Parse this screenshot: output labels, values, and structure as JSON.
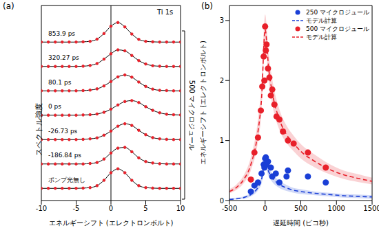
{
  "chart_data": [
    {
      "label": "(a)",
      "type": "line",
      "x_label": "エネルギーシフト (エレクトロンボルト)",
      "y_label": "スペクトル強度",
      "xlim": [
        -10,
        10
      ],
      "xticks": [
        -10,
        -5,
        0,
        5,
        10
      ],
      "ylim": [
        0,
        8
      ],
      "tick_labels": "x",
      "marker": "circle",
      "reference_lines": [
        0
      ],
      "annotations": [
        "Ti 1s",
        "500 マイクロジュール"
      ],
      "x": [
        -10,
        -9,
        -8,
        -7,
        -6,
        -5,
        -4,
        -3,
        -2,
        -1,
        0,
        1,
        2,
        3,
        4,
        5,
        6,
        7,
        8,
        9,
        10
      ],
      "series": [
        {
          "name": "853.9 ps",
          "color": "#e8202a",
          "values": [
            6.5,
            6.5,
            6.5,
            6.5,
            6.5,
            6.5,
            6.51,
            6.53,
            6.62,
            6.85,
            7.15,
            7.3,
            7.12,
            6.83,
            6.61,
            6.53,
            6.51,
            6.5,
            6.5,
            6.5,
            6.5
          ]
        },
        {
          "name": "320.27 ps",
          "color": "#e8202a",
          "values": [
            5.5,
            5.5,
            5.5,
            5.5,
            5.5,
            5.5,
            5.51,
            5.54,
            5.62,
            5.8,
            6.02,
            6.18,
            6.14,
            5.95,
            5.74,
            5.6,
            5.53,
            5.51,
            5.5,
            5.5,
            5.5
          ]
        },
        {
          "name": "80.1 ps",
          "color": "#e8202a",
          "values": [
            4.5,
            4.5,
            4.5,
            4.5,
            4.5,
            4.5,
            4.51,
            4.53,
            4.58,
            4.7,
            4.88,
            5.07,
            5.15,
            5.06,
            4.86,
            4.68,
            4.57,
            4.52,
            4.51,
            4.5,
            4.5
          ]
        },
        {
          "name": "0 ps",
          "color": "#e8202a",
          "values": [
            3.5,
            3.5,
            3.5,
            3.5,
            3.5,
            3.5,
            3.51,
            3.52,
            3.55,
            3.62,
            3.75,
            3.92,
            4.06,
            4.1,
            4.02,
            3.85,
            3.7,
            3.6,
            3.54,
            3.52,
            3.51
          ]
        },
        {
          "name": "-26.73 ps",
          "color": "#e8202a",
          "values": [
            2.5,
            2.5,
            2.5,
            2.5,
            2.5,
            2.5,
            2.51,
            2.53,
            2.57,
            2.68,
            2.85,
            3.05,
            3.15,
            3.08,
            2.88,
            2.7,
            2.58,
            2.53,
            2.51,
            2.5,
            2.5
          ]
        },
        {
          "name": "-186.84 ps",
          "color": "#e8202a",
          "values": [
            1.5,
            1.5,
            1.5,
            1.5,
            1.5,
            1.5,
            1.5,
            1.52,
            1.56,
            1.7,
            1.95,
            2.15,
            2.18,
            2.0,
            1.75,
            1.6,
            1.54,
            1.51,
            1.5,
            1.5,
            1.5
          ]
        },
        {
          "name": "ポンプ光無し",
          "color": "#e8202a",
          "values": [
            0.5,
            0.5,
            0.5,
            0.5,
            0.5,
            0.5,
            0.51,
            0.53,
            0.61,
            0.83,
            1.14,
            1.3,
            1.14,
            0.83,
            0.61,
            0.53,
            0.51,
            0.5,
            0.5,
            0.5,
            0.5
          ]
        }
      ]
    },
    {
      "label": "(b)",
      "type": "scatter",
      "x_label": "遅延時間 (ピコ秒)",
      "y_label": "エネルギーシフト (エレクトロンボルト)",
      "xlim": [
        -500,
        1500
      ],
      "xticks": [
        -500,
        0,
        500,
        1000,
        1500
      ],
      "ylim": [
        0,
        3.25
      ],
      "yticks": [
        0,
        1,
        2,
        3
      ],
      "legend": "upper right",
      "series": [
        {
          "name": "250 マイクロジュール",
          "color": "#1a3fd6",
          "type": "scatter",
          "marker": "circle",
          "x": [
            -200,
            -150,
            -100,
            -50,
            -20,
            -10,
            0,
            10,
            20,
            40,
            80,
            100,
            150,
            200,
            300,
            320,
            600,
            850
          ],
          "values": [
            0.15,
            0.25,
            0.3,
            0.45,
            0.6,
            0.55,
            0.7,
            0.72,
            0.6,
            0.65,
            0.55,
            0.4,
            0.45,
            0.3,
            0.4,
            0.5,
            0.4,
            0.3
          ]
        },
        {
          "name": "モデル計算",
          "color": "#1a3fd6",
          "type": "line",
          "line_style": "dashed",
          "x": [
            -500,
            -400,
            -300,
            -200,
            -100,
            -50,
            0,
            50,
            100,
            200,
            300,
            400,
            500,
            700,
            900,
            1100,
            1300,
            1500
          ],
          "values": [
            0.02,
            0.03,
            0.05,
            0.1,
            0.22,
            0.35,
            0.65,
            0.48,
            0.38,
            0.27,
            0.21,
            0.17,
            0.15,
            0.12,
            0.1,
            0.08,
            0.07,
            0.06
          ],
          "lower": [
            0.01,
            0.02,
            0.03,
            0.07,
            0.17,
            0.28,
            0.55,
            0.4,
            0.31,
            0.21,
            0.16,
            0.13,
            0.11,
            0.09,
            0.07,
            0.05,
            0.04,
            0.03
          ],
          "upper": [
            0.03,
            0.05,
            0.07,
            0.13,
            0.27,
            0.42,
            0.75,
            0.56,
            0.45,
            0.33,
            0.26,
            0.21,
            0.19,
            0.15,
            0.13,
            0.11,
            0.1,
            0.09
          ]
        },
        {
          "name": "500 マイクロジュール",
          "color": "#e8202a",
          "type": "scatter",
          "marker": "circle",
          "x": [
            -200,
            -150,
            -100,
            -60,
            -40,
            -20,
            -10,
            0,
            10,
            20,
            40,
            60,
            80,
            100,
            130,
            160,
            200,
            250,
            320,
            400,
            600,
            850
          ],
          "values": [
            0.35,
            0.8,
            1.05,
            1.5,
            1.9,
            2.4,
            2.0,
            2.9,
            2.5,
            2.6,
            2.2,
            2.05,
            1.75,
            1.85,
            1.6,
            1.4,
            1.35,
            1.15,
            1.0,
            0.95,
            0.8,
            0.55
          ]
        },
        {
          "name": "モデル計算",
          "color": "#e8202a",
          "type": "line",
          "line_style": "dashed",
          "x": [
            -500,
            -400,
            -300,
            -200,
            -100,
            -50,
            0,
            50,
            100,
            200,
            300,
            400,
            500,
            700,
            900,
            1100,
            1300,
            1500
          ],
          "values": [
            0.15,
            0.22,
            0.35,
            0.6,
            1.15,
            1.7,
            2.85,
            2.2,
            1.8,
            1.35,
            1.1,
            0.95,
            0.82,
            0.65,
            0.52,
            0.43,
            0.37,
            0.32
          ],
          "lower": [
            0.12,
            0.18,
            0.29,
            0.5,
            0.98,
            1.48,
            2.6,
            1.98,
            1.6,
            1.18,
            0.96,
            0.82,
            0.7,
            0.55,
            0.44,
            0.36,
            0.31,
            0.27
          ],
          "upper": [
            0.19,
            0.27,
            0.42,
            0.72,
            1.35,
            1.95,
            3.1,
            2.45,
            2.02,
            1.52,
            1.25,
            1.08,
            0.94,
            0.76,
            0.61,
            0.5,
            0.44,
            0.38
          ]
        }
      ]
    }
  ]
}
